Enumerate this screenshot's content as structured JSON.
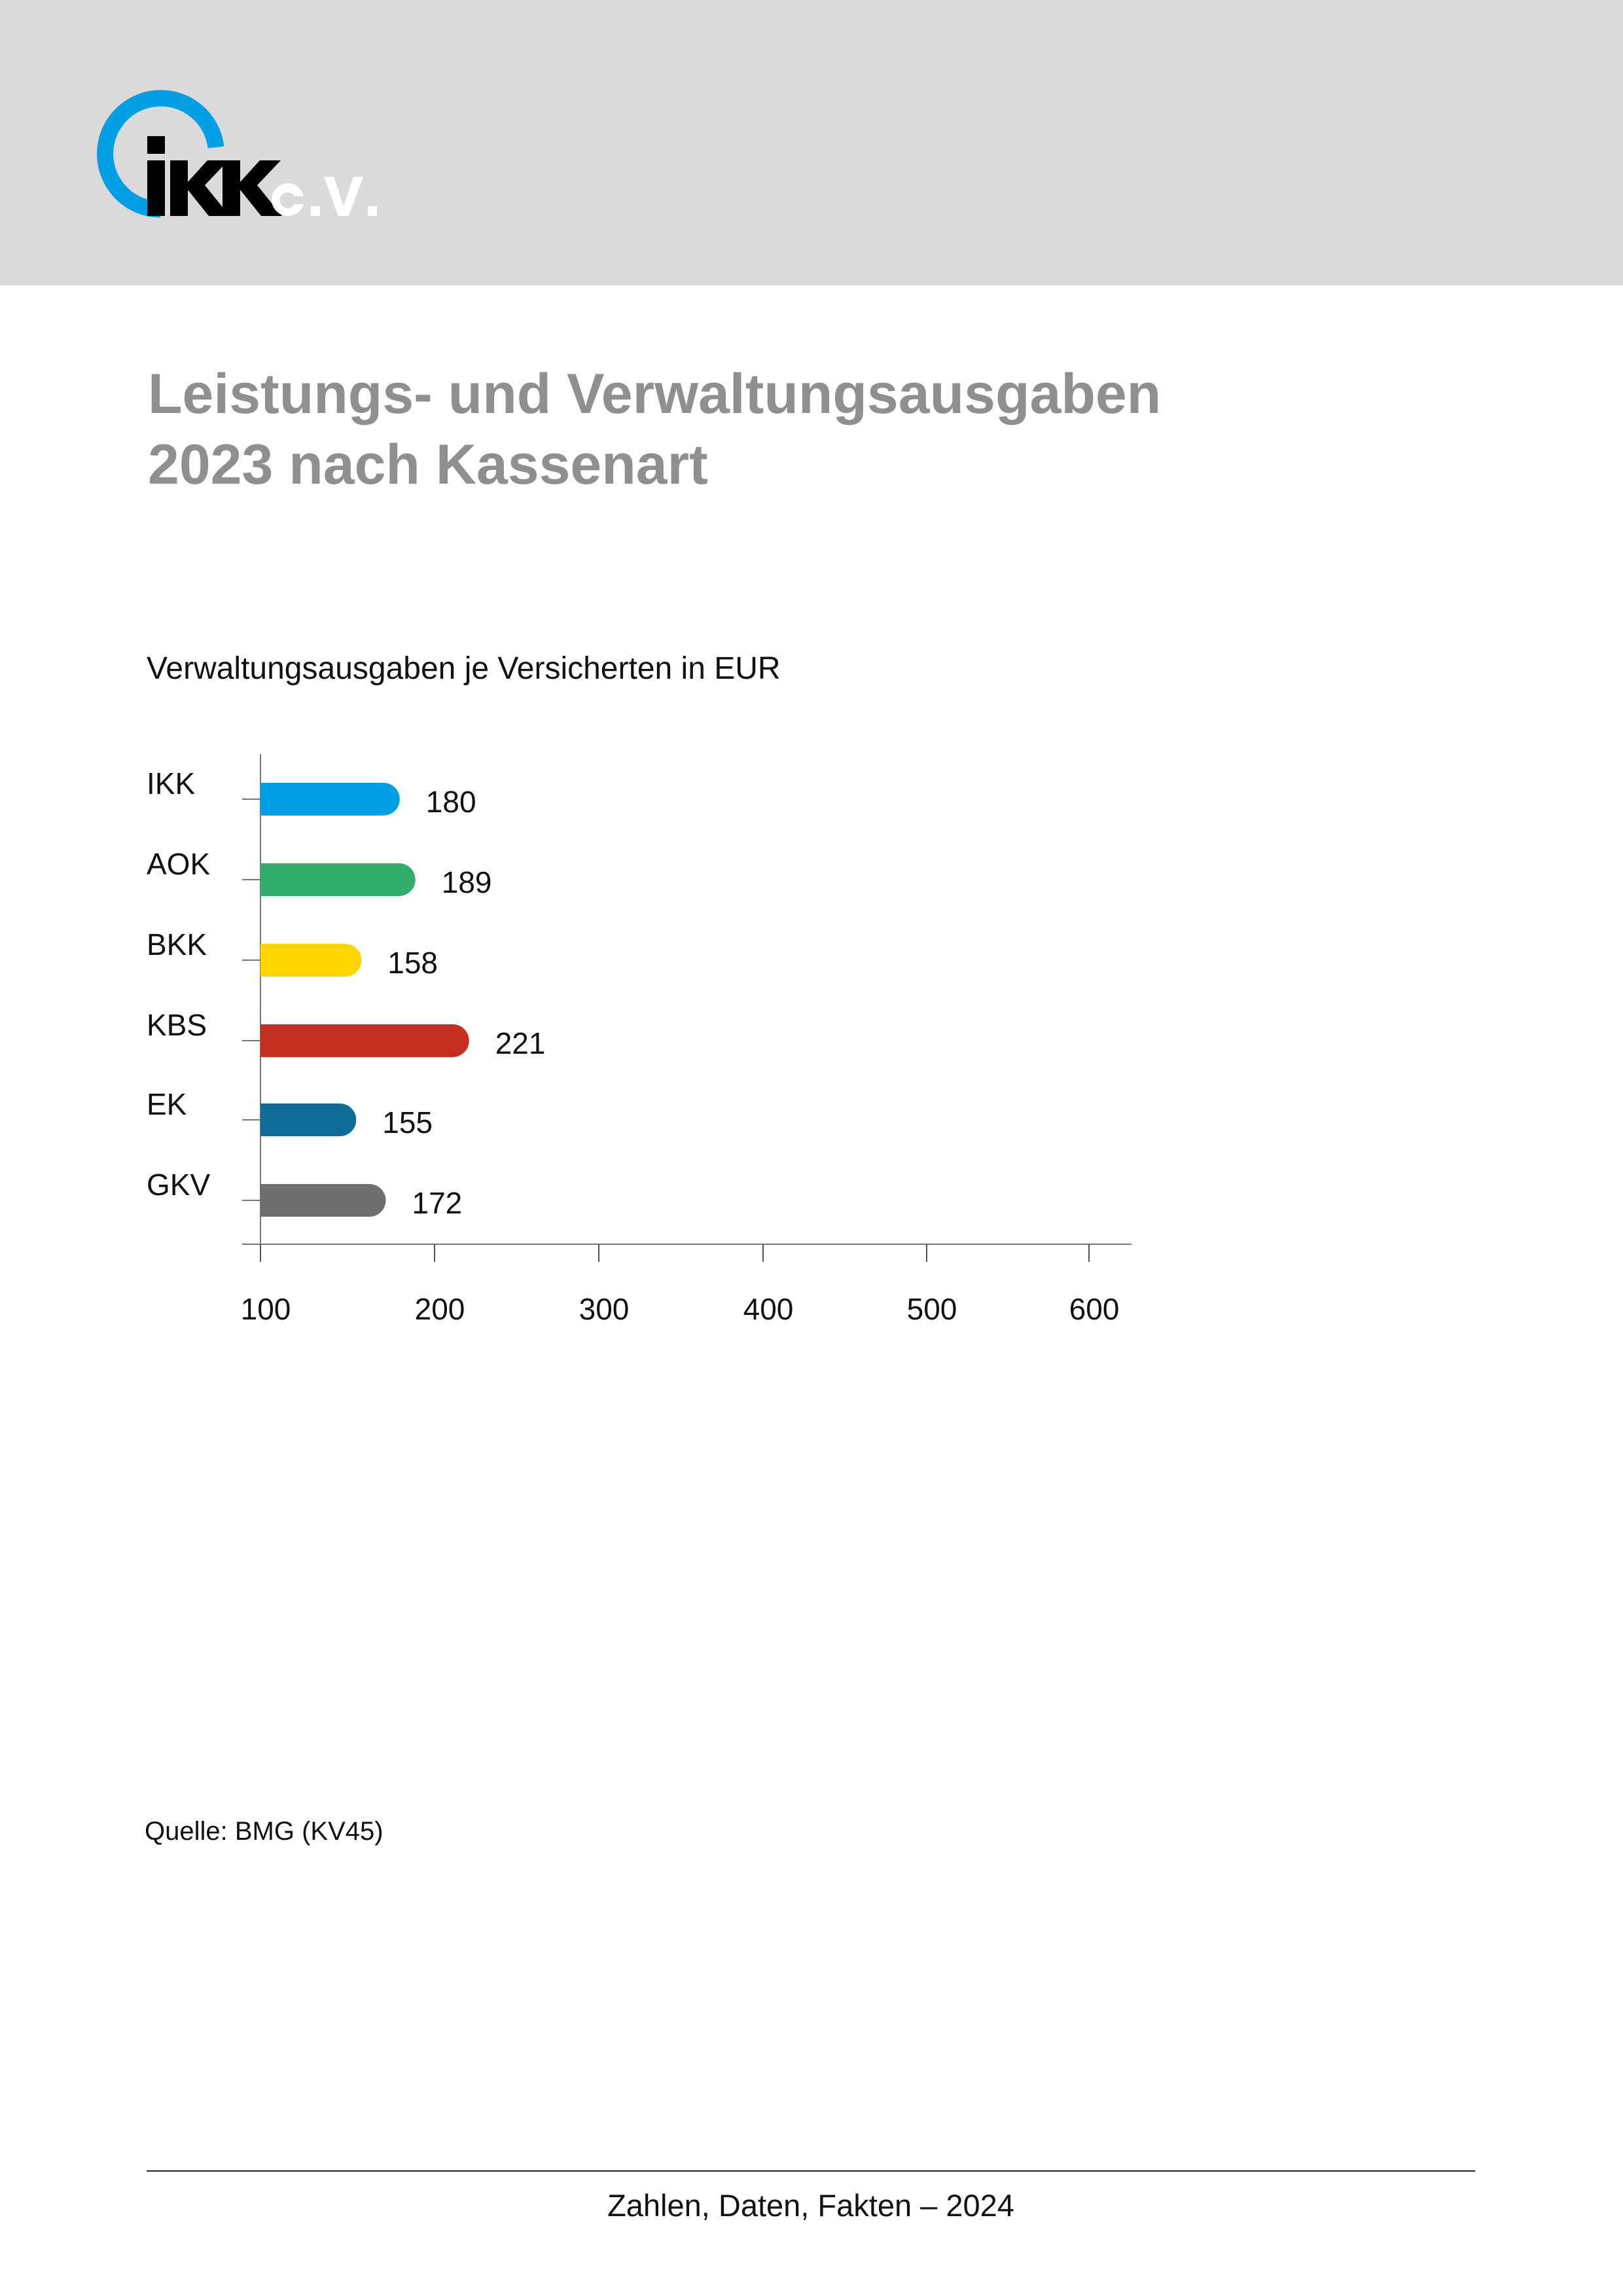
{
  "logo": {
    "text": "IKK e.V.",
    "colors": {
      "ring": "#009fe3",
      "letters": "#000000",
      "suffix": "#ffffff"
    }
  },
  "title": {
    "line1": "Leistungs- und Verwaltungsausgaben",
    "line2": "2023 nach Kassenart"
  },
  "chart_data": {
    "type": "bar",
    "orientation": "horizontal",
    "title": "Verwaltungsausgaben je Versicherten in EUR",
    "categories": [
      "IKK",
      "AOK",
      "BKK",
      "KBS",
      "EK",
      "GKV"
    ],
    "values": [
      180,
      189,
      158,
      221,
      155,
      172
    ],
    "colors": [
      "#009fe3",
      "#32ad6a",
      "#ffd500",
      "#c42e1c",
      "#0f6c96",
      "#6f6f6e"
    ],
    "xlim": [
      100,
      600
    ],
    "xticks": [
      100,
      200,
      300,
      400,
      500,
      600
    ],
    "grid": false,
    "data_labels": true
  },
  "source": "Quelle: BMG (KV45)",
  "footer": "Zahlen, Daten, Fakten – 2024"
}
